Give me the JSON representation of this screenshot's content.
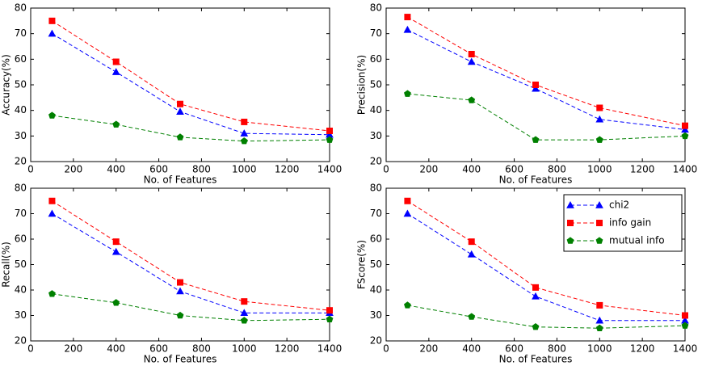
{
  "chart_data": [
    {
      "type": "line",
      "xlabel": "No. of Features",
      "ylabel": "Accuracy(%)",
      "x": [
        100,
        400,
        700,
        1000,
        1400
      ],
      "xlim": [
        0,
        1400
      ],
      "xticks": [
        0,
        200,
        400,
        600,
        800,
        1000,
        1200,
        1400
      ],
      "ylim": [
        20,
        80
      ],
      "yticks": [
        20,
        30,
        40,
        50,
        60,
        70,
        80
      ],
      "series": [
        {
          "color": "#0000ff",
          "marker": "triangle",
          "values": [
            70,
            55,
            39.5,
            31,
            30.5
          ]
        },
        {
          "color": "#ff0000",
          "marker": "square",
          "values": [
            75,
            59,
            42.5,
            35.5,
            32
          ]
        },
        {
          "color": "#008000",
          "marker": "pentagon",
          "values": [
            38,
            34.5,
            29.5,
            28,
            28.5
          ]
        }
      ]
    },
    {
      "type": "line",
      "xlabel": "No. of Features",
      "ylabel": "Precision(%)",
      "x": [
        100,
        400,
        700,
        1000,
        1400
      ],
      "xlim": [
        0,
        1400
      ],
      "xticks": [
        0,
        200,
        400,
        600,
        800,
        1000,
        1200,
        1400
      ],
      "ylim": [
        20,
        80
      ],
      "yticks": [
        20,
        30,
        40,
        50,
        60,
        70,
        80
      ],
      "series": [
        {
          "color": "#0000ff",
          "marker": "triangle",
          "values": [
            71.5,
            59,
            48.5,
            36.5,
            32.5
          ]
        },
        {
          "color": "#ff0000",
          "marker": "square",
          "values": [
            76.5,
            62,
            50,
            41,
            34
          ]
        },
        {
          "color": "#008000",
          "marker": "pentagon",
          "values": [
            46.5,
            44,
            28.5,
            28.5,
            30
          ]
        }
      ]
    },
    {
      "type": "line",
      "xlabel": "No. of Features",
      "ylabel": "Recall(%)",
      "x": [
        100,
        400,
        700,
        1000,
        1400
      ],
      "xlim": [
        0,
        1400
      ],
      "xticks": [
        0,
        200,
        400,
        600,
        800,
        1000,
        1200,
        1400
      ],
      "ylim": [
        20,
        80
      ],
      "yticks": [
        20,
        30,
        40,
        50,
        60,
        70,
        80
      ],
      "series": [
        {
          "color": "#0000ff",
          "marker": "triangle",
          "values": [
            70,
            55,
            39.5,
            31,
            31
          ]
        },
        {
          "color": "#ff0000",
          "marker": "square",
          "values": [
            75,
            59,
            43,
            35.5,
            32
          ]
        },
        {
          "color": "#008000",
          "marker": "pentagon",
          "values": [
            38.5,
            35,
            30,
            28,
            28.5
          ]
        }
      ]
    },
    {
      "type": "line",
      "xlabel": "No. of Features",
      "ylabel": "FScore(%)",
      "x": [
        100,
        400,
        700,
        1000,
        1400
      ],
      "xlim": [
        0,
        1400
      ],
      "xticks": [
        0,
        200,
        400,
        600,
        800,
        1000,
        1200,
        1400
      ],
      "ylim": [
        20,
        80
      ],
      "yticks": [
        20,
        30,
        40,
        50,
        60,
        70,
        80
      ],
      "legend": "upper right",
      "series": [
        {
          "name": "chi2",
          "color": "#0000ff",
          "marker": "triangle",
          "values": [
            70,
            54,
            37.5,
            28,
            28
          ]
        },
        {
          "name": "info gain",
          "color": "#ff0000",
          "marker": "square",
          "values": [
            75,
            59,
            41,
            34,
            30
          ]
        },
        {
          "name": "mutual info",
          "color": "#008000",
          "marker": "pentagon",
          "values": [
            34,
            29.5,
            25.5,
            25,
            26
          ]
        }
      ]
    }
  ]
}
